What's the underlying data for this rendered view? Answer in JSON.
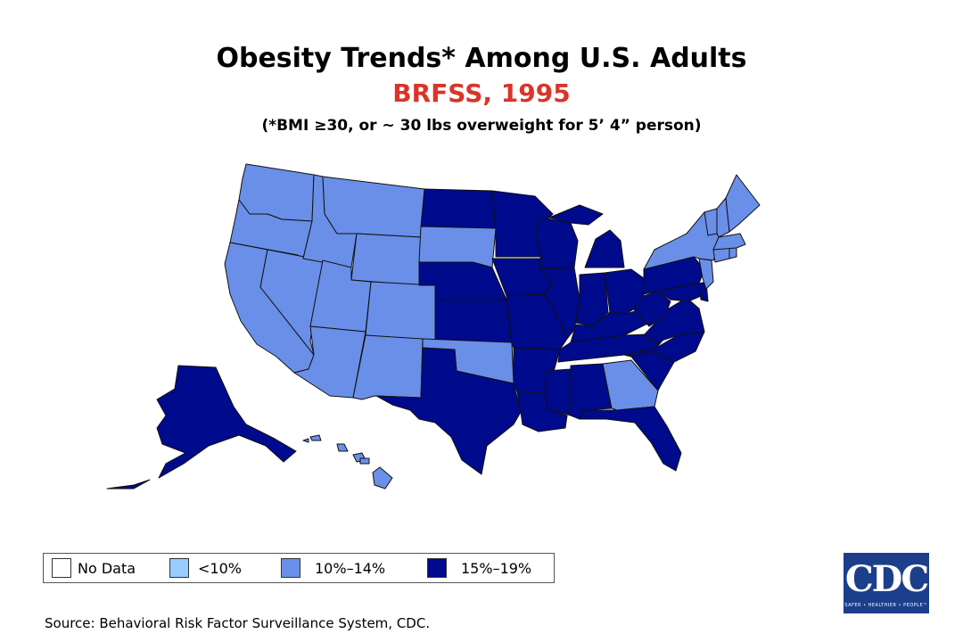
{
  "title": "Obesity Trends* Among U.S. Adults",
  "subtitle": "BRFSS, 1995",
  "note": "(*BMI ≥30, or ~ 30 lbs overweight for 5’ 4” person)",
  "colors": {
    "no_data": "#ffffff",
    "lt10": "#99ccff",
    "10_14": "#6a8fe8",
    "15_19": "#000a8c",
    "border": "#111111"
  },
  "legend": [
    {
      "label": "No Data",
      "category": "no_data"
    },
    {
      "label": "<10%",
      "category": "lt10"
    },
    {
      "label": "10%–14%",
      "category": "10_14"
    },
    {
      "label": "15%–19%",
      "category": "15_19"
    }
  ],
  "map_data": {
    "year": 1995,
    "states": {
      "WA": "10_14",
      "OR": "10_14",
      "CA": "10_14",
      "NV": "10_14",
      "ID": "10_14",
      "MT": "10_14",
      "WY": "10_14",
      "UT": "10_14",
      "AZ": "10_14",
      "CO": "10_14",
      "NM": "10_14",
      "SD": "10_14",
      "OK": "10_14",
      "GA": "10_14",
      "HI": "10_14",
      "NY": "10_14",
      "VT": "10_14",
      "NH": "10_14",
      "ME": "10_14",
      "MA": "10_14",
      "CT": "10_14",
      "RI": "10_14",
      "NJ": "10_14",
      "ND": "15_19",
      "MN": "15_19",
      "WI": "15_19",
      "MI": "15_19",
      "IA": "15_19",
      "NE": "15_19",
      "KS": "15_19",
      "MO": "15_19",
      "IL": "15_19",
      "IN": "15_19",
      "OH": "15_19",
      "KY": "15_19",
      "TN": "15_19",
      "AR": "15_19",
      "TX": "15_19",
      "LA": "15_19",
      "MS": "15_19",
      "AL": "15_19",
      "FL": "15_19",
      "SC": "15_19",
      "NC": "15_19",
      "VA": "15_19",
      "WV": "15_19",
      "PA": "15_19",
      "MD": "15_19",
      "DE": "15_19",
      "AK": "15_19",
      "DC": "15_19"
    }
  },
  "source": "Source: Behavioral Risk Factor Surveillance System, CDC.",
  "logo": {
    "text": "CDC",
    "tagline": "SAFER • HEALTHIER • PEOPLE™"
  }
}
